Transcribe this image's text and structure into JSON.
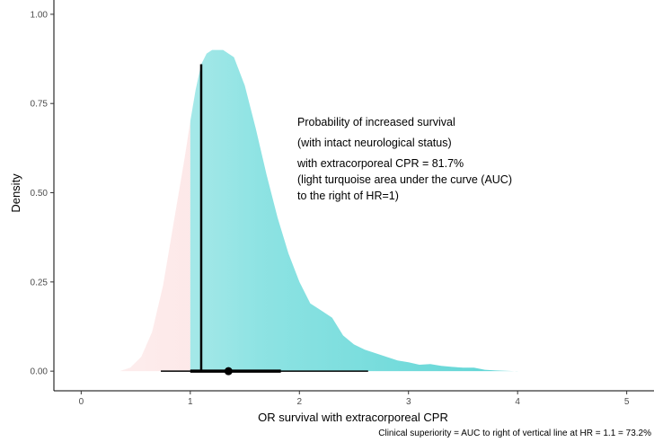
{
  "chart_data": {
    "type": "area",
    "title": "",
    "xlabel": "OR survival with extracorporeal CPR",
    "ylabel": "Density",
    "xlim": [
      -0.25,
      5.25
    ],
    "ylim": [
      -0.055,
      1.04
    ],
    "x_ticks": [
      0,
      1,
      2,
      3,
      4,
      5
    ],
    "y_ticks": [
      0.0,
      0.25,
      0.5,
      0.75,
      1.0
    ],
    "x_tick_labels": [
      "0",
      "1",
      "2",
      "3",
      "4",
      "5"
    ],
    "y_tick_labels": [
      "0.00",
      "0.25",
      "0.50",
      "0.75",
      "1.00"
    ],
    "grid": false,
    "density": {
      "x": [
        0.35,
        0.45,
        0.55,
        0.65,
        0.75,
        0.85,
        0.95,
        1.0,
        1.05,
        1.1,
        1.15,
        1.2,
        1.25,
        1.3,
        1.35,
        1.4,
        1.5,
        1.6,
        1.7,
        1.8,
        1.9,
        2.0,
        2.1,
        2.2,
        2.3,
        2.4,
        2.5,
        2.6,
        2.7,
        2.8,
        2.9,
        3.0,
        3.1,
        3.2,
        3.3,
        3.4,
        3.5,
        3.6,
        3.7,
        3.8,
        4.0
      ],
      "y": [
        0.0,
        0.01,
        0.04,
        0.11,
        0.24,
        0.42,
        0.6,
        0.7,
        0.79,
        0.86,
        0.89,
        0.9,
        0.9,
        0.9,
        0.89,
        0.88,
        0.8,
        0.68,
        0.55,
        0.43,
        0.33,
        0.25,
        0.19,
        0.17,
        0.15,
        0.1,
        0.075,
        0.06,
        0.05,
        0.04,
        0.03,
        0.025,
        0.018,
        0.02,
        0.015,
        0.012,
        0.01,
        0.01,
        0.004,
        0.002,
        0.0
      ]
    },
    "shade_split_x": 1.0,
    "colors": {
      "left_fill": "#fcdada",
      "right_fill_light": "#bdeeee",
      "right_fill": "#67d8d8",
      "line": "#000000"
    },
    "vertical_line": {
      "x": 1.1,
      "y_top": 0.86
    },
    "point_estimate": 1.35,
    "intervals": [
      {
        "from": 1.0,
        "to": 1.83,
        "level": "inner"
      },
      {
        "from": 0.73,
        "to": 2.63,
        "level": "outer"
      }
    ],
    "annotation": [
      "Probability of increased survival",
      "(with intact neurological status)",
      "with extracorporeal CPR = 81.7%",
      "(light turquoise area under the curve (AUC)",
      "to the right of HR=1)"
    ],
    "caption": "Clinical superiority = AUC to right of vertical line at HR = 1.1 = 73.2%"
  }
}
